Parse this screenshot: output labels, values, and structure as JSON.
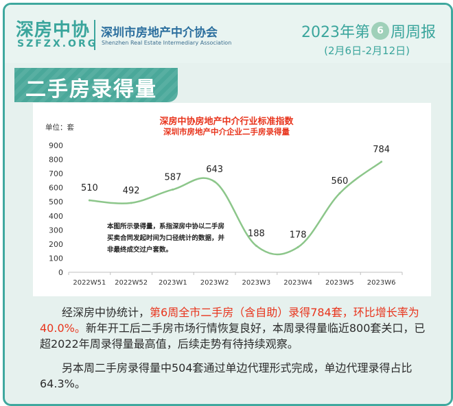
{
  "header": {
    "logo_cn": "深房中协",
    "logo_en": "SZFZX.ORG",
    "org_cn": "深圳市房地产中介协会",
    "org_en": "Shenzhen Real Estate Intermediary Association",
    "week_prefix": "2023年第",
    "week_number": "6",
    "week_suffix": "周周报",
    "date_range": "(2月6日-2月12日)"
  },
  "section": {
    "title": "二手房录得量"
  },
  "chart_data": {
    "type": "line",
    "title": "深房中协房地产中介行业标准指数",
    "subtitle": "深圳市房地产中介企业二手房录得量",
    "ylabel": "单位：套",
    "categories": [
      "2022W51",
      "2022W52",
      "2023W1",
      "2023W2",
      "2023W3",
      "2023W4",
      "2023W5",
      "2023W6"
    ],
    "series": [
      {
        "values": [
          510,
          492,
          587,
          643,
          188,
          178,
          560,
          784
        ]
      }
    ],
    "ylim": [
      0,
      900
    ],
    "yticks": [
      0,
      100,
      200,
      300,
      400,
      500,
      600,
      700,
      800,
      900
    ],
    "grid": false,
    "line_color": "#8cc68a",
    "annotation": "本图所示录得量，系指深房中协以二手房买卖合同发起时间为口径统计的数据，并非最终成交过户套数。"
  },
  "text": {
    "p1_a": "经深房中协统计，",
    "p1_b": "第6周全市二手房（含自助）录得784套，环比增长率为40.0%。",
    "p1_c": "新年开工后二手房市场行情恢复良好，本周录得量临近800套关口，已超2022年周录得量最高值，后续走势有待持续观察。",
    "p2": "另本周二手房录得量中504套通过单边代理形式完成，单边代理录得占比64.3%。"
  }
}
